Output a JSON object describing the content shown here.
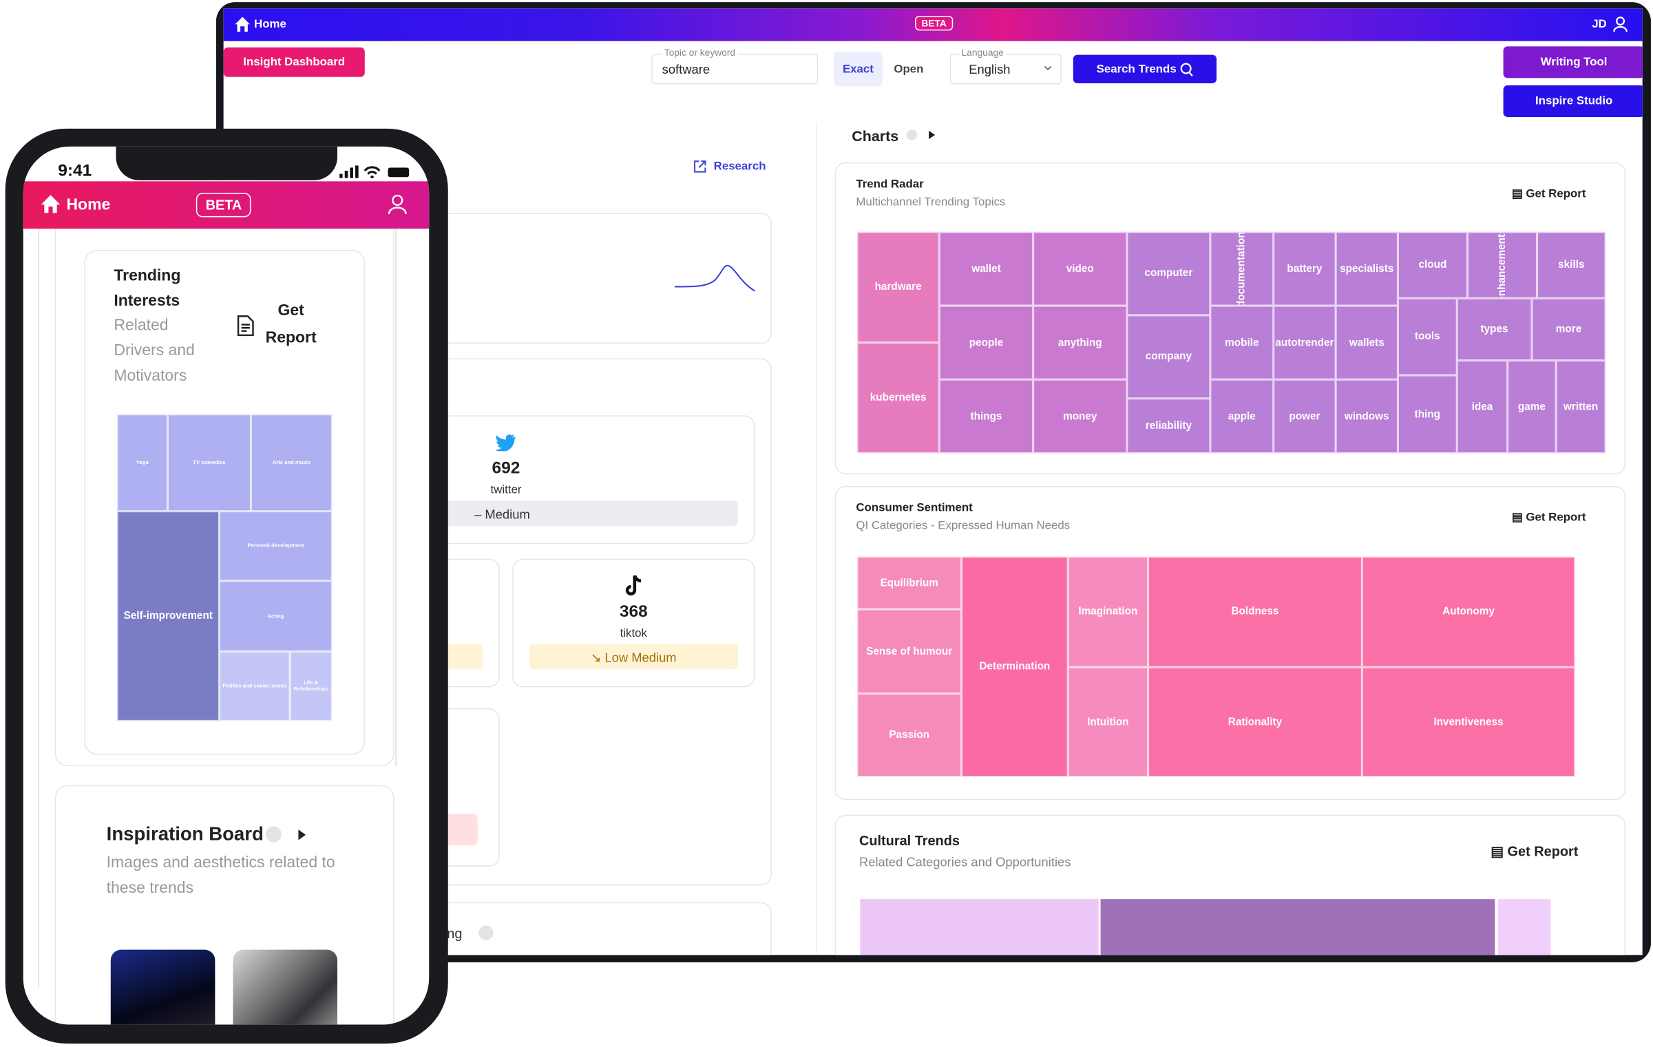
{
  "tablet": {
    "nav": {
      "home": "Home",
      "beta": "BETA",
      "user": "JD"
    },
    "toolbar": {
      "dashboard": "Insight Dashboard",
      "topic_label": "Topic or keyword",
      "topic_value": "software",
      "exact": "Exact",
      "open": "Open",
      "language_label": "Language",
      "language_value": "English",
      "search": "Search Trends",
      "writing": "Writing Tool",
      "inspire": "Inspire Studio"
    },
    "left": {
      "research": "Research",
      "twitter_count": "692",
      "twitter_name": "twitter",
      "twitter_level": "Medium",
      "tiktok_count": "368",
      "tiktok_name": "tiktok",
      "tiktok_level": "Low Medium",
      "partial": "ng"
    },
    "charts_heading": "Charts",
    "trend_radar": {
      "title": "Trend Radar",
      "subtitle": "Multichannel Trending Topics",
      "report": "Get Report",
      "cells": [
        "hardware",
        "kubernetes",
        "wallet",
        "people",
        "things",
        "video",
        "anything",
        "money",
        "computer",
        "company",
        "reliability",
        "documentation",
        "mobile",
        "apple",
        "battery",
        "autotrender",
        "power",
        "specialists",
        "wallets",
        "windows",
        "cloud",
        "tools",
        "thing",
        "enhancements",
        "types",
        "idea",
        "game",
        "skills",
        "more",
        "written"
      ]
    },
    "consumer_sentiment": {
      "title": "Consumer Sentiment",
      "subtitle": "QI Categories - Expressed Human Needs",
      "report": "Get Report",
      "cells": [
        "Equilibrium",
        "Sense of humour",
        "Passion",
        "Determination",
        "Imagination",
        "Intuition",
        "Boldness",
        "Rationality",
        "Autonomy",
        "Inventiveness"
      ]
    },
    "cultural_trends": {
      "title": "Cultural Trends",
      "subtitle": "Related Categories and Opportunities",
      "report": "Get Report"
    }
  },
  "phone": {
    "time": "9:41",
    "home": "Home",
    "beta": "BETA",
    "card": {
      "title": "Trending Interests",
      "subtitle": "Related Drivers and Motivators",
      "report": "Get Report",
      "cells": [
        "Yoga",
        "TV comedies",
        "Arts and music",
        "Self-improvement",
        "Personal development",
        "Acting",
        "Politics and social issues",
        "Life & Relationships"
      ]
    },
    "inspiration": {
      "title": "Inspiration Board",
      "subtitle": "Images and aesthetics related to these trends"
    }
  }
}
